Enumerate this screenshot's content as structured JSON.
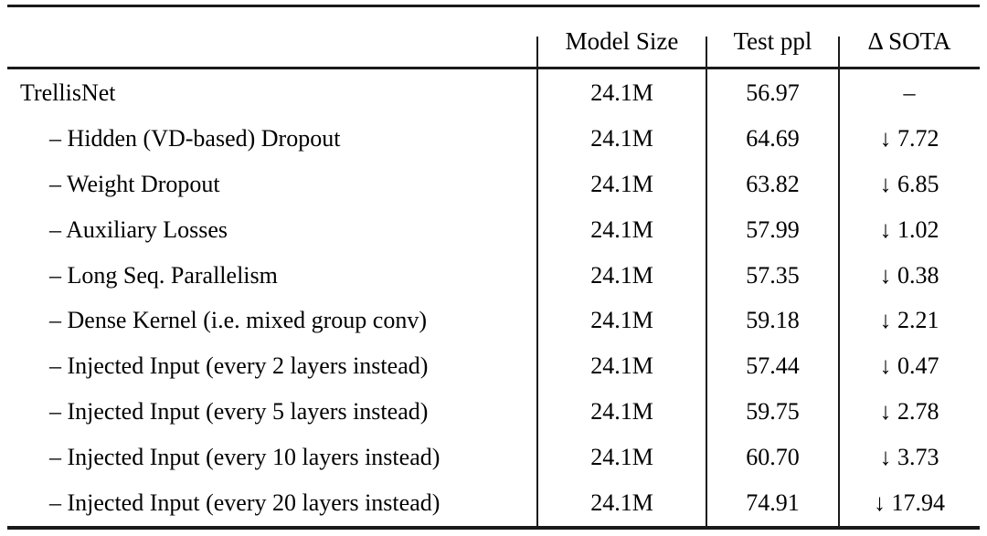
{
  "table": {
    "columns": [
      "",
      "Model Size",
      "Test ppl",
      "Δ SOTA"
    ],
    "rows": [
      {
        "label": "TrellisNet",
        "model_size": "24.1M",
        "test_ppl": "56.97",
        "delta_sota": "–"
      },
      {
        "label": "– Hidden (VD-based) Dropout",
        "model_size": "24.1M",
        "test_ppl": "64.69",
        "delta_sota": "↓ 7.72"
      },
      {
        "label": "– Weight Dropout",
        "model_size": "24.1M",
        "test_ppl": "63.82",
        "delta_sota": "↓ 6.85"
      },
      {
        "label": "– Auxiliary Losses",
        "model_size": "24.1M",
        "test_ppl": "57.99",
        "delta_sota": "↓ 1.02"
      },
      {
        "label": "– Long Seq. Parallelism",
        "model_size": "24.1M",
        "test_ppl": "57.35",
        "delta_sota": "↓ 0.38"
      },
      {
        "label": "– Dense Kernel (i.e. mixed group conv)",
        "model_size": "24.1M",
        "test_ppl": "59.18",
        "delta_sota": "↓ 2.21"
      },
      {
        "label": "– Injected Input (every 2 layers instead)",
        "model_size": "24.1M",
        "test_ppl": "57.44",
        "delta_sota": "↓ 0.47"
      },
      {
        "label": "– Injected Input (every 5 layers instead)",
        "model_size": "24.1M",
        "test_ppl": "59.75",
        "delta_sota": "↓ 2.78"
      },
      {
        "label": "– Injected Input (every 10 layers instead)",
        "model_size": "24.1M",
        "test_ppl": "60.70",
        "delta_sota": "↓ 3.73"
      },
      {
        "label": "– Injected Input (every 20 layers instead)",
        "model_size": "24.1M",
        "test_ppl": "74.91",
        "delta_sota": "↓ 17.94"
      }
    ],
    "colors": {
      "rule": "#1a1a1a",
      "text": "#000000",
      "background": "#ffffff"
    }
  }
}
